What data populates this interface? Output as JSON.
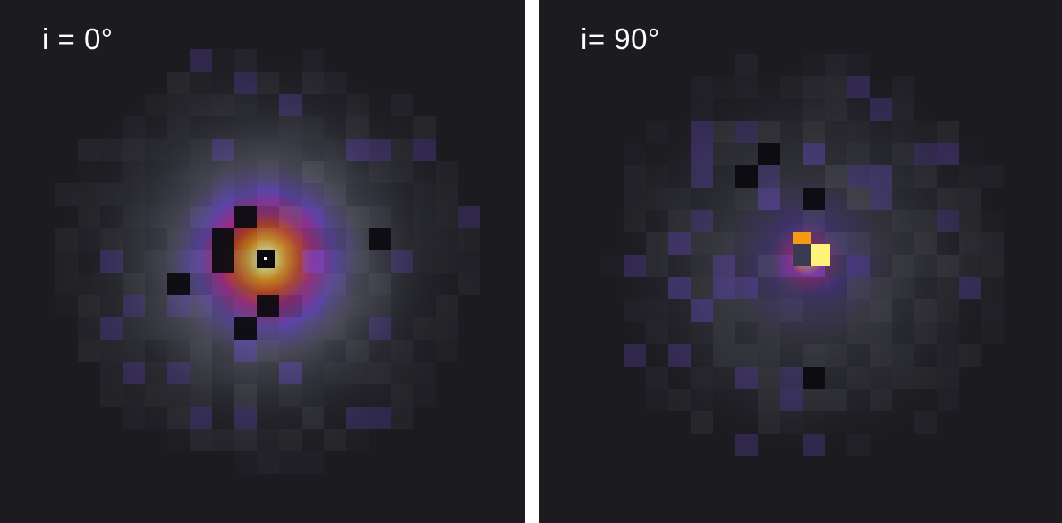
{
  "figure": {
    "background": "#ffffff",
    "panels": [
      {
        "label": "i = 0°",
        "inclination_deg": 0,
        "background": "#1b1b20"
      },
      {
        "label": "i= 90°",
        "inclination_deg": 90,
        "background": "#1b1b20"
      }
    ],
    "colormap": [
      "#1b1b20",
      "#3a3a44",
      "#5a5a6a",
      "#6a4fc8",
      "#b2288c",
      "#e0451e",
      "#f59a12",
      "#fff27a",
      "#ffffff"
    ]
  }
}
